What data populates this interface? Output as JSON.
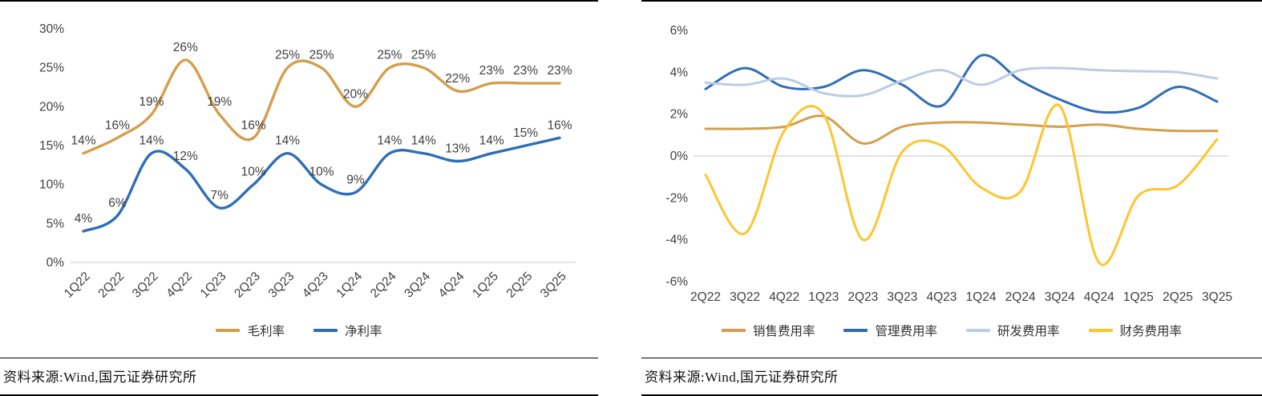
{
  "page": {
    "background": "#ffffff",
    "text_color": "#404040",
    "grid_color": "#D2D2D2",
    "rule_color": "#000000"
  },
  "chart_data": [
    {
      "type": "line",
      "title": "",
      "xlabel": "",
      "ylabel": "",
      "categories": [
        "1Q22",
        "2Q22",
        "3Q22",
        "4Q22",
        "1Q23",
        "2Q23",
        "3Q23",
        "4Q23",
        "1Q24",
        "2Q24",
        "3Q24",
        "4Q24",
        "1Q25",
        "2Q25",
        "3Q25"
      ],
      "series": [
        {
          "name": "毛利率",
          "color": "#D49E4D",
          "values": [
            14,
            16,
            19,
            26,
            19,
            16,
            25,
            25,
            20,
            25,
            25,
            22,
            23,
            23,
            23
          ],
          "point_labels": [
            "14%",
            "16%",
            "19%",
            "26%",
            "19%",
            "16%",
            "25%",
            "25%",
            "20%",
            "25%",
            "25%",
            "22%",
            "23%",
            "23%",
            "23%"
          ]
        },
        {
          "name": "净利率",
          "color": "#2F6EB6",
          "values": [
            4,
            6,
            14,
            12,
            7,
            10,
            14,
            10,
            9,
            14,
            14,
            13,
            14,
            15,
            16
          ],
          "point_labels": [
            "4%",
            "6%",
            "14%",
            "12%",
            "7%",
            "10%",
            "14%",
            "10%",
            "9%",
            "14%",
            "14%",
            "13%",
            "14%",
            "15%",
            "16%"
          ]
        }
      ],
      "ylim": [
        0,
        30
      ],
      "yticks": [
        "30%",
        "25%",
        "20%",
        "15%",
        "10%",
        "5%",
        "0%"
      ],
      "legend_position": "bottom",
      "grid": "baseline-only",
      "x_tick_rotation": -45,
      "source": "资料来源:Wind,国元证券研究所"
    },
    {
      "type": "line",
      "title": "",
      "xlabel": "",
      "ylabel": "",
      "categories": [
        "2Q22",
        "3Q22",
        "4Q22",
        "1Q23",
        "2Q23",
        "3Q23",
        "4Q23",
        "1Q24",
        "2Q24",
        "3Q24",
        "4Q24",
        "1Q25",
        "2Q25",
        "3Q25"
      ],
      "series": [
        {
          "name": "销售费用率",
          "color": "#D49E4D",
          "values": [
            1.3,
            1.3,
            1.4,
            1.9,
            0.6,
            1.4,
            1.6,
            1.6,
            1.5,
            1.4,
            1.5,
            1.3,
            1.2,
            1.2
          ]
        },
        {
          "name": "管理费用率",
          "color": "#2F6EB6",
          "values": [
            3.2,
            4.2,
            3.3,
            3.3,
            4.1,
            3.4,
            2.4,
            4.8,
            3.6,
            2.7,
            2.1,
            2.3,
            3.3,
            2.6
          ]
        },
        {
          "name": "研发费用率",
          "color": "#BCCCE4",
          "values": [
            3.5,
            3.4,
            3.7,
            3.0,
            2.9,
            3.6,
            4.1,
            3.4,
            4.1,
            4.2,
            4.1,
            4.05,
            4.0,
            3.7
          ]
        },
        {
          "name": "财务费用率",
          "color": "#FFC52F",
          "values": [
            -0.9,
            -3.7,
            1.2,
            2.0,
            -4.0,
            0.2,
            0.5,
            -1.5,
            -1.7,
            2.4,
            -5.1,
            -1.9,
            -1.4,
            0.8
          ]
        }
      ],
      "ylim": [
        -6,
        6
      ],
      "yticks": [
        "6%",
        "4%",
        "2%",
        "0%",
        "-2%",
        "-4%",
        "-6%"
      ],
      "legend_position": "bottom",
      "grid": "zero-line-only",
      "x_tick_rotation": 0,
      "source": "资料来源:Wind,国元证券研究所"
    }
  ]
}
